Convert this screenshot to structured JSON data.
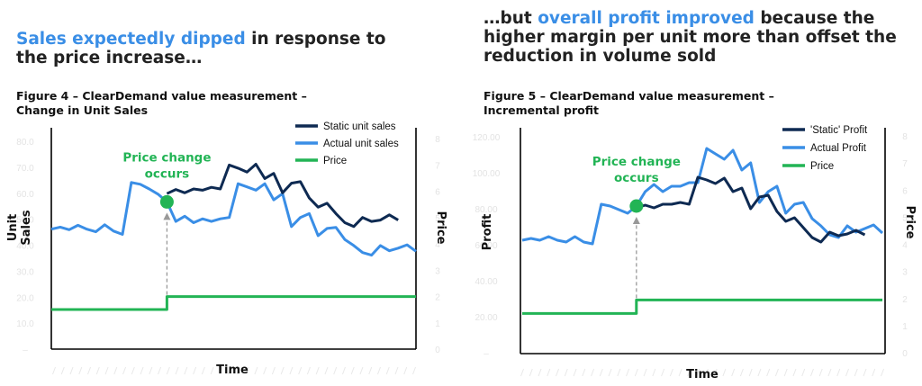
{
  "colors": {
    "dark": "#0e2a52",
    "blue": "#3a8ee6",
    "green": "#22b455",
    "arrow": "#999999",
    "tick": "#e3e3e3"
  },
  "left_headline": {
    "hl": "Sales expectedly dipped",
    "rest": " in response to the price increase…"
  },
  "right_headline": {
    "pre": "…but ",
    "hl": "overall profit improved",
    "rest": " because the higher margin per unit more than offset the reduction in volume sold"
  },
  "figure4": {
    "title_line1": "Figure 4 – ClearDemand value measurement –",
    "title_line2": "Change in Unit Sales"
  },
  "figure5": {
    "title_line1": "Figure 5 – ClearDemand value measurement –",
    "title_line2": "Incremental profit"
  },
  "chart_data": [
    {
      "type": "line",
      "xlabel": "Time",
      "ylabel": "Unit Sales",
      "y2label": "Price",
      "ylim": [
        0,
        80
      ],
      "y_ticks": [
        "80.0",
        "70.0",
        "60.0",
        "50.0",
        "40.0",
        "30.0",
        "20.0",
        "10.0",
        "–"
      ],
      "y2lim": [
        0,
        8
      ],
      "y2_ticks": [
        "8",
        "7",
        "6",
        "5",
        "4",
        "3",
        "2",
        "1",
        "0"
      ],
      "annotation": {
        "line1": "Price change",
        "line2": "occurs",
        "x": 13
      },
      "series": [
        {
          "name": "Static unit sales",
          "color": "dark",
          "axis": "left",
          "start": 13,
          "values": [
            60.2,
            61.8,
            60.5,
            62.0,
            61.5,
            62.6,
            62.0,
            71.2,
            70.0,
            68.5,
            71.5,
            66.0,
            68.0,
            60.5,
            64.2,
            64.8,
            58.5,
            55.0,
            56.5,
            52.5,
            49.0,
            47.5,
            51.0,
            49.5,
            50.0,
            52.0,
            50.0
          ]
        },
        {
          "name": "Actual unit sales",
          "color": "blue",
          "axis": "left",
          "start": 0,
          "values": [
            46.5,
            47.3,
            46.3,
            48.0,
            46.5,
            45.5,
            48.2,
            45.8,
            44.5,
            64.5,
            63.8,
            62.0,
            60.0,
            57.0,
            49.5,
            51.5,
            49.0,
            50.5,
            49.5,
            50.5,
            51.0,
            64.0,
            62.8,
            61.5,
            64.0,
            57.8,
            60.2,
            47.5,
            51.0,
            52.5,
            44.0,
            46.8,
            47.2,
            42.5,
            40.2,
            37.5,
            36.5,
            40.2,
            38.2,
            39.2,
            40.5,
            38.0
          ]
        },
        {
          "name": "Price",
          "color": "green",
          "axis": "right",
          "start": 0,
          "values": [
            1.54,
            1.54,
            1.54,
            1.54,
            1.54,
            1.54,
            1.54,
            1.54,
            1.54,
            1.54,
            1.54,
            1.54,
            1.54,
            2.03,
            2.03,
            2.03,
            2.03,
            2.03,
            2.03,
            2.03,
            2.03,
            2.03,
            2.03,
            2.03,
            2.03,
            2.03,
            2.03,
            2.03,
            2.03,
            2.03,
            2.03,
            2.03,
            2.03,
            2.03,
            2.03,
            2.03,
            2.03,
            2.03,
            2.03,
            2.03,
            2.03,
            2.03
          ]
        }
      ]
    },
    {
      "type": "line",
      "xlabel": "Time",
      "ylabel": "Profit",
      "y2label": "Price",
      "ylim": [
        0,
        120
      ],
      "y_ticks": [
        "120.00",
        "100.00",
        "80.00",
        "60.00",
        "40.00",
        "20.00",
        "–"
      ],
      "y2lim": [
        0,
        8
      ],
      "y2_ticks": [
        "8",
        "7",
        "6",
        "5",
        "4",
        "3",
        "2",
        "1",
        "0"
      ],
      "annotation": {
        "line1": "Price change",
        "line2": "occurs",
        "x": 13
      },
      "series": [
        {
          "name": "'Static' Profit",
          "color": "dark",
          "axis": "left",
          "start": 13,
          "values": [
            81.0,
            82.5,
            81.0,
            83.0,
            83.0,
            84.0,
            83.0,
            98.0,
            96.5,
            94.5,
            97.5,
            90.0,
            92.0,
            80.5,
            87.0,
            88.0,
            79.0,
            73.5,
            75.5,
            70.0,
            64.5,
            62.0,
            67.5,
            65.5,
            66.5,
            68.5,
            66.0
          ]
        },
        {
          "name": "Actual Profit",
          "color": "blue",
          "axis": "left",
          "start": 0,
          "values": [
            63.0,
            64.0,
            63.0,
            65.0,
            63.0,
            62.0,
            65.0,
            62.0,
            61.0,
            83.0,
            82.0,
            80.0,
            78.0,
            82.0,
            90.0,
            94.0,
            90.0,
            93.0,
            93.0,
            95.0,
            95.0,
            114.0,
            111.0,
            108.0,
            113.0,
            102.0,
            106.0,
            84.0,
            90.0,
            93.0,
            78.0,
            83.0,
            84.0,
            75.0,
            71.0,
            66.0,
            64.5,
            71.0,
            67.5,
            69.5,
            71.5,
            67.0
          ]
        },
        {
          "name": "Price",
          "color": "green",
          "axis": "right",
          "start": 0,
          "values": [
            1.48,
            1.48,
            1.48,
            1.48,
            1.48,
            1.48,
            1.48,
            1.48,
            1.48,
            1.48,
            1.48,
            1.48,
            1.48,
            1.98,
            1.98,
            1.98,
            1.98,
            1.98,
            1.98,
            1.98,
            1.98,
            1.98,
            1.98,
            1.98,
            1.98,
            1.98,
            1.98,
            1.98,
            1.98,
            1.98,
            1.98,
            1.98,
            1.98,
            1.98,
            1.98,
            1.98,
            1.98,
            1.98,
            1.98,
            1.98,
            1.98,
            1.98
          ]
        }
      ]
    }
  ]
}
